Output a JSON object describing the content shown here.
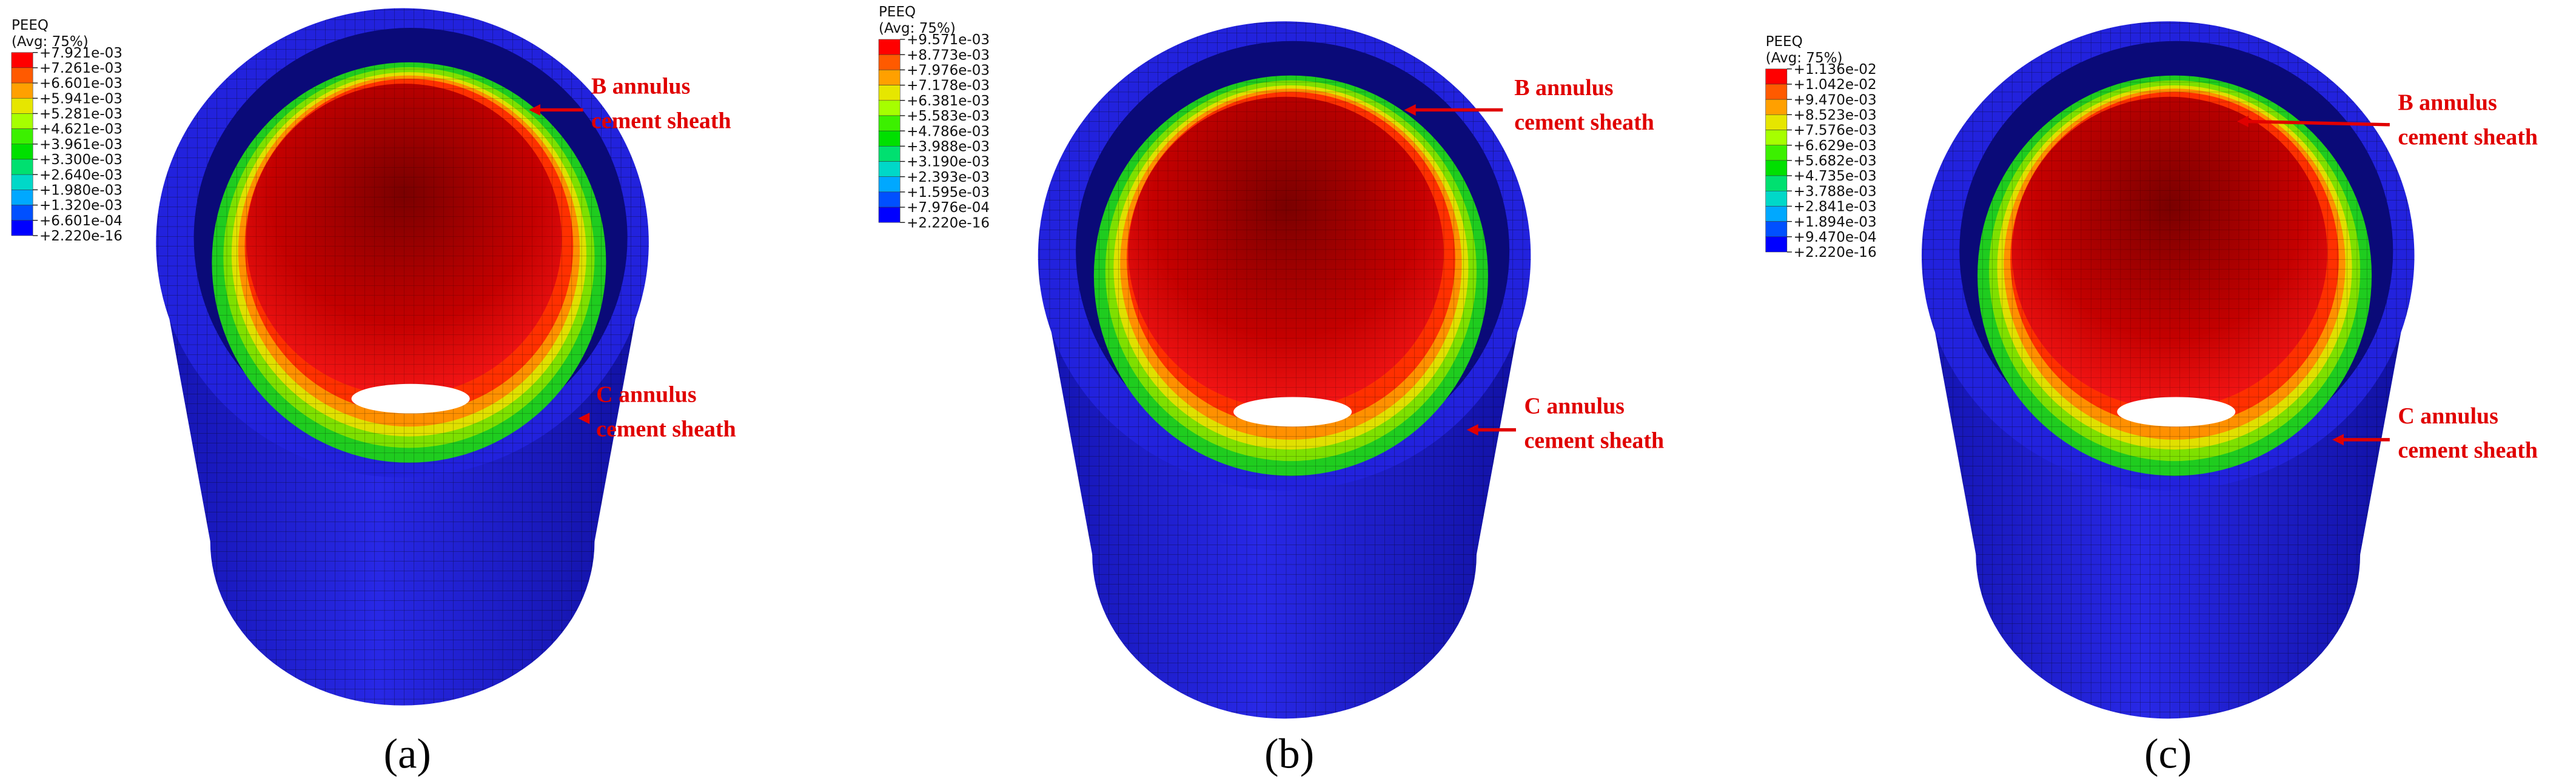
{
  "legend_colors": [
    "#ff0000",
    "#ff5a00",
    "#ffa000",
    "#e6e600",
    "#a6ff00",
    "#3cf000",
    "#00e000",
    "#00e070",
    "#00d8c8",
    "#00a8ff",
    "#0050ff",
    "#0000ff"
  ],
  "panels": [
    {
      "legend": {
        "title": "PEEQ",
        "subtitle": "(Avg: 75%)",
        "labels": [
          "+7.921e-03",
          "+7.261e-03",
          "+6.601e-03",
          "+5.941e-03",
          "+5.281e-03",
          "+4.621e-03",
          "+3.961e-03",
          "+3.300e-03",
          "+2.640e-03",
          "+1.980e-03",
          "+1.320e-03",
          "+6.601e-04",
          "+2.220e-16"
        ]
      },
      "annotations": [
        {
          "lines": [
            "B annulus",
            "cement sheath"
          ]
        },
        {
          "lines": [
            "C annulus",
            "cement sheath"
          ]
        }
      ],
      "caption": "(a)"
    },
    {
      "legend": {
        "title": "PEEQ",
        "subtitle": "(Avg: 75%)",
        "labels": [
          "+9.571e-03",
          "+8.773e-03",
          "+7.976e-03",
          "+7.178e-03",
          "+6.381e-03",
          "+5.583e-03",
          "+4.786e-03",
          "+3.988e-03",
          "+3.190e-03",
          "+2.393e-03",
          "+1.595e-03",
          "+7.976e-04",
          "+2.220e-16"
        ]
      },
      "annotations": [
        {
          "lines": [
            "B annulus",
            "cement sheath"
          ]
        },
        {
          "lines": [
            "C annulus",
            "cement sheath"
          ]
        }
      ],
      "caption": "(b)"
    },
    {
      "legend": {
        "title": "PEEQ",
        "subtitle": "(Avg: 75%)",
        "labels": [
          "+1.136e-02",
          "+1.042e-02",
          "+9.470e-03",
          "+8.523e-03",
          "+7.576e-03",
          "+6.629e-03",
          "+5.682e-03",
          "+4.735e-03",
          "+3.788e-03",
          "+2.841e-03",
          "+1.894e-03",
          "+9.470e-04",
          "+2.220e-16"
        ]
      },
      "annotations": [
        {
          "lines": [
            "B annulus",
            "cement sheath"
          ]
        },
        {
          "lines": [
            "C annulus",
            "cement sheath"
          ]
        }
      ],
      "caption": "(c)"
    }
  ]
}
